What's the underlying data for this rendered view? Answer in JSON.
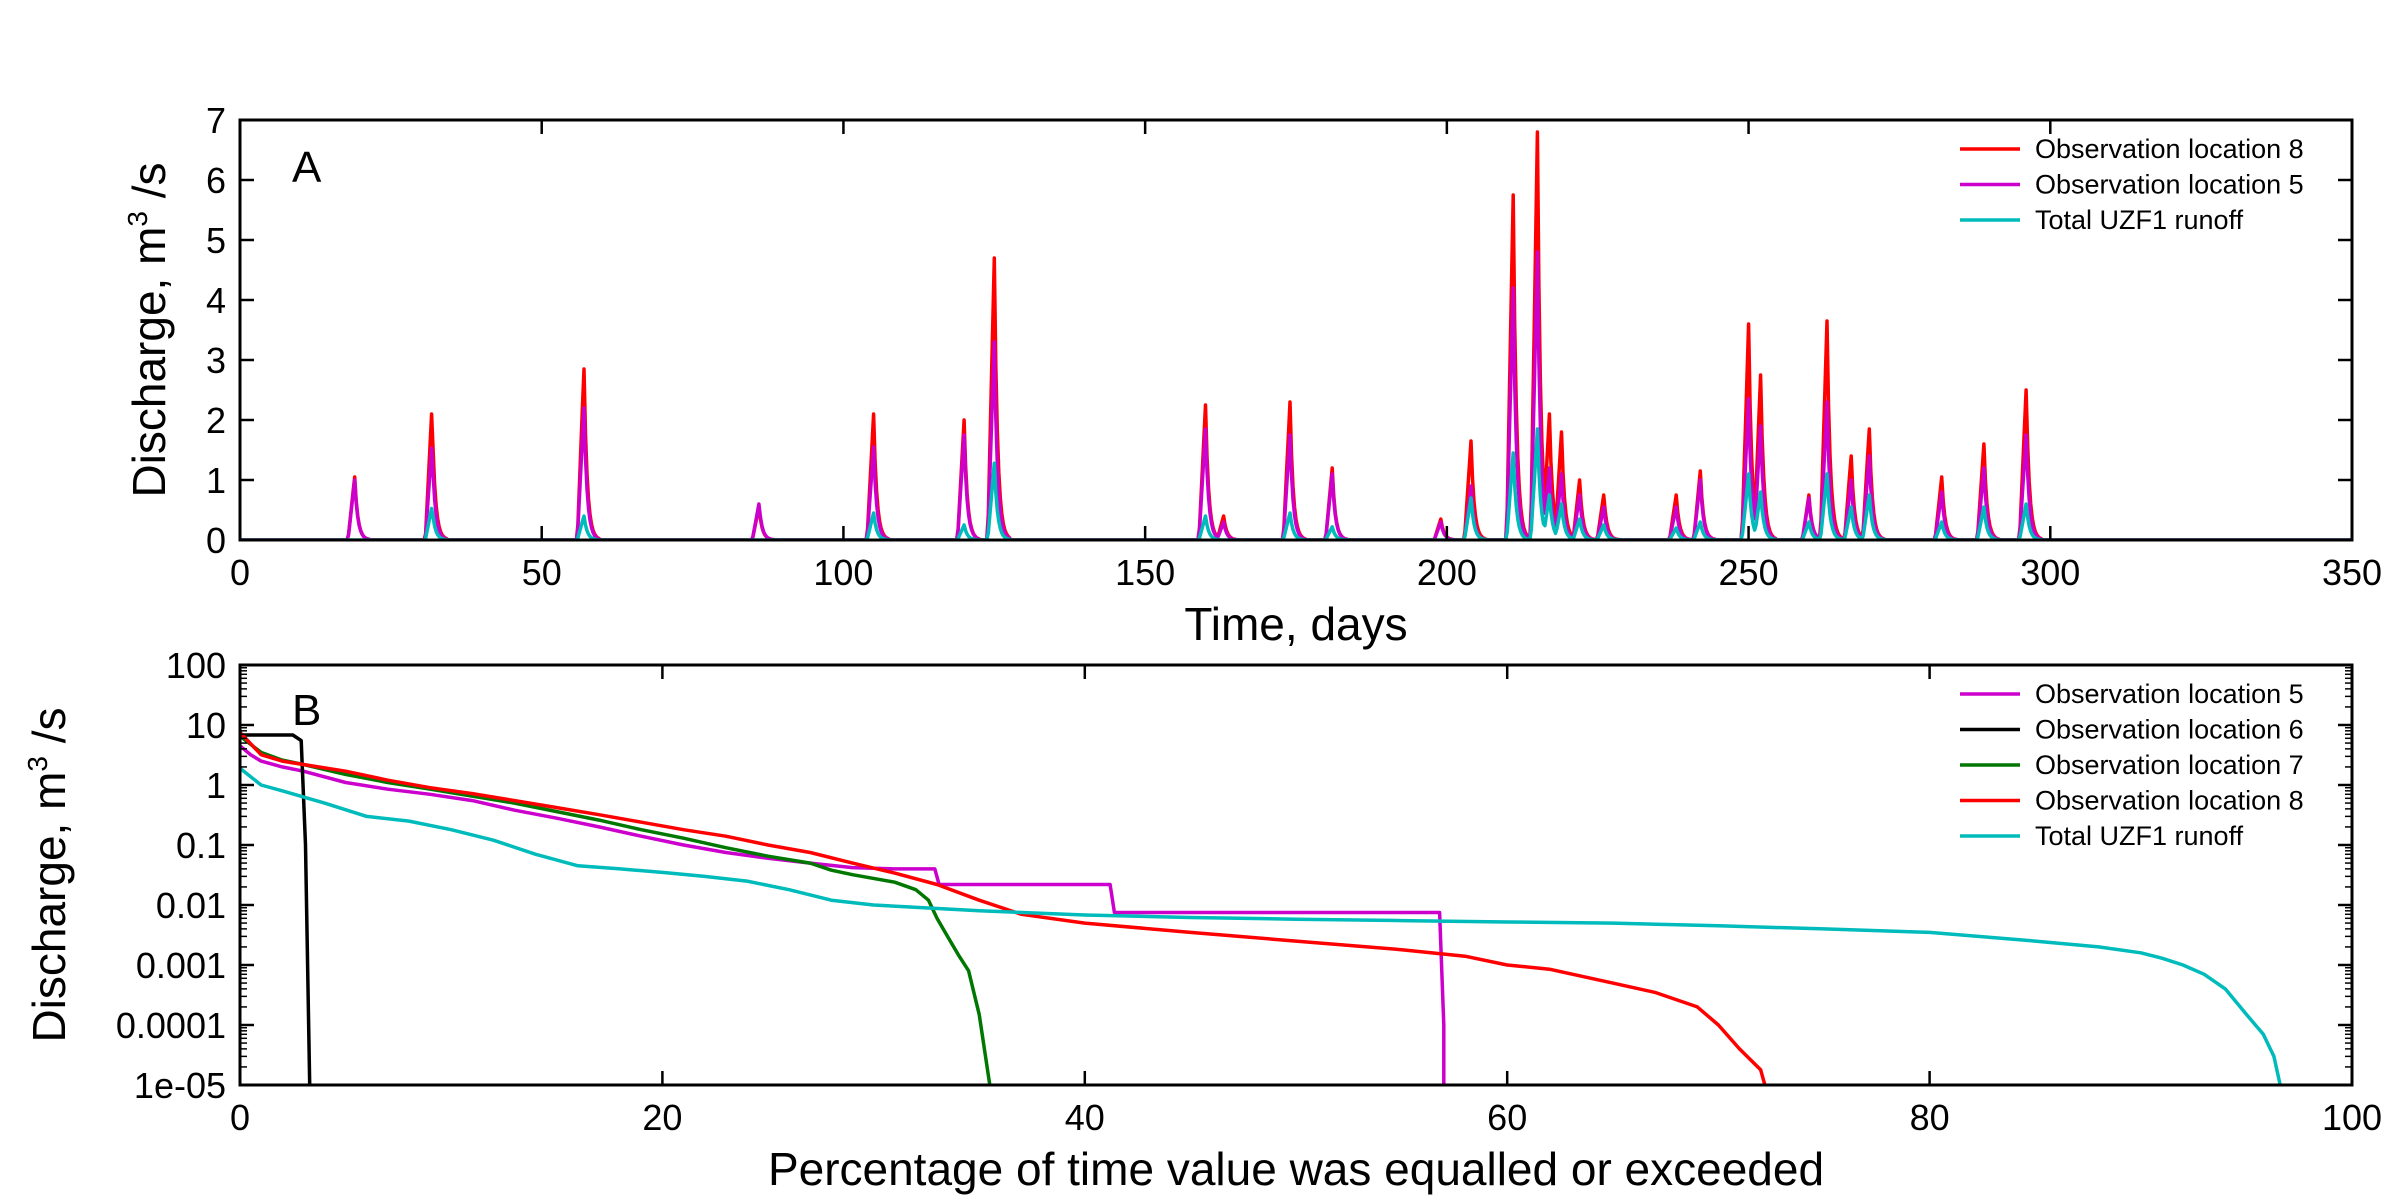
{
  "chart_data": [
    {
      "type": "line",
      "panel_label": "A",
      "xlabel": "Time, days",
      "ylabel": "Discharge, m³ /s",
      "ylabel_parts": {
        "main": "Discharge, m",
        "sup": "3",
        "unit": " /s"
      },
      "xlim": [
        0,
        350
      ],
      "ylim": [
        0,
        7
      ],
      "xticks": [
        0,
        50,
        100,
        150,
        200,
        250,
        300,
        350
      ],
      "xtick_labels": [
        "0",
        "50",
        "100",
        "150",
        "200",
        "250",
        "300",
        "350"
      ],
      "yticks": [
        0,
        1,
        2,
        3,
        4,
        5,
        6,
        7
      ],
      "ytick_labels": [
        "0",
        "1",
        "2",
        "3",
        "4",
        "5",
        "6",
        "7"
      ],
      "grid": false,
      "legend_position": "top-right",
      "series": [
        {
          "name": "Observation location 8",
          "color": "#ff0000",
          "peaks": [
            [
              19,
              1.05
            ],
            [
              31.8,
              2.2
            ],
            [
              57,
              2.85
            ],
            [
              86,
              0.55
            ],
            [
              105,
              2.1
            ],
            [
              120,
              2.0
            ],
            [
              125,
              4.7
            ],
            [
              160,
              2.25
            ],
            [
              163,
              0.4
            ],
            [
              174,
              2.3
            ],
            [
              181,
              1.2
            ],
            [
              199,
              0.35
            ],
            [
              204,
              1.65
            ],
            [
              211,
              5.75
            ],
            [
              215,
              6.8
            ],
            [
              217,
              2.1
            ],
            [
              219,
              1.8
            ],
            [
              222,
              1.0
            ],
            [
              226,
              0.75
            ],
            [
              238,
              0.75
            ],
            [
              242,
              1.15
            ],
            [
              250,
              3.6
            ],
            [
              252,
              2.75
            ],
            [
              260,
              0.75
            ],
            [
              263,
              3.65
            ],
            [
              267,
              1.4
            ],
            [
              270,
              1.85
            ],
            [
              282,
              1.05
            ],
            [
              289,
              1.6
            ],
            [
              296,
              2.5
            ]
          ]
        },
        {
          "name": "Observation location 5",
          "color": "#cc00cc",
          "peaks": [
            [
              19,
              1.0
            ],
            [
              31.8,
              1.6
            ],
            [
              57,
              2.2
            ],
            [
              86,
              0.6
            ],
            [
              105,
              1.55
            ],
            [
              120,
              1.75
            ],
            [
              125,
              3.3
            ],
            [
              160,
              1.85
            ],
            [
              163,
              0.3
            ],
            [
              174,
              1.75
            ],
            [
              181,
              1.1
            ],
            [
              199,
              0.3
            ],
            [
              204,
              0.9
            ],
            [
              211,
              4.2
            ],
            [
              215,
              4.8
            ],
            [
              217,
              1.2
            ],
            [
              219,
              1.1
            ],
            [
              222,
              0.75
            ],
            [
              226,
              0.55
            ],
            [
              238,
              0.55
            ],
            [
              242,
              1.0
            ],
            [
              250,
              2.35
            ],
            [
              252,
              1.9
            ],
            [
              260,
              0.7
            ],
            [
              263,
              2.3
            ],
            [
              267,
              1.0
            ],
            [
              270,
              1.4
            ],
            [
              282,
              0.8
            ],
            [
              289,
              1.2
            ],
            [
              296,
              1.75
            ]
          ]
        },
        {
          "name": "Total UZF1 runoff",
          "color": "#00bbbb",
          "peaks": [
            [
              31.8,
              0.55
            ],
            [
              57,
              0.4
            ],
            [
              105,
              0.45
            ],
            [
              120,
              0.25
            ],
            [
              125,
              1.28
            ],
            [
              160,
              0.4
            ],
            [
              174,
              0.45
            ],
            [
              181,
              0.22
            ],
            [
              204,
              0.7
            ],
            [
              211,
              1.45
            ],
            [
              215,
              1.85
            ],
            [
              217,
              0.75
            ],
            [
              219,
              0.6
            ],
            [
              222,
              0.35
            ],
            [
              226,
              0.25
            ],
            [
              238,
              0.2
            ],
            [
              242,
              0.3
            ],
            [
              250,
              1.1
            ],
            [
              252,
              0.8
            ],
            [
              260,
              0.3
            ],
            [
              263,
              1.1
            ],
            [
              267,
              0.55
            ],
            [
              270,
              0.75
            ],
            [
              282,
              0.3
            ],
            [
              289,
              0.55
            ],
            [
              296,
              0.6
            ]
          ]
        }
      ]
    },
    {
      "type": "line",
      "panel_label": "B",
      "xlabel": "Percentage of time value was equalled or exceeded",
      "ylabel": "Discharge, m³ /s",
      "ylabel_parts": {
        "main": "Discharge, m",
        "sup": "3",
        "unit": " /s"
      },
      "xlim": [
        0,
        100
      ],
      "ylim": [
        1e-05,
        100
      ],
      "yscale": "log",
      "xticks": [
        0,
        20,
        40,
        60,
        80,
        100
      ],
      "xtick_labels": [
        "0",
        "20",
        "40",
        "60",
        "80",
        "100"
      ],
      "yticks": [
        1e-05,
        0.0001,
        0.001,
        0.01,
        0.1,
        1,
        10,
        100
      ],
      "ytick_labels": [
        "1e-05",
        "0.0001",
        "0.001",
        "0.01",
        "0.1",
        "1",
        "10",
        "100"
      ],
      "grid": false,
      "legend_position": "top-right",
      "series": [
        {
          "name": "Observation location 5",
          "color": "#cc00cc",
          "x": [
            0,
            0.5,
            1,
            2,
            3,
            5,
            7,
            9,
            11,
            13,
            15,
            17,
            19,
            21,
            23,
            25,
            27,
            29,
            31,
            32.9,
            33.1,
            41.2,
            41.4,
            56.8,
            57.0,
            57.0
          ],
          "y": [
            4.5,
            3.2,
            2.5,
            2.0,
            1.7,
            1.1,
            0.85,
            0.7,
            0.55,
            0.38,
            0.28,
            0.2,
            0.14,
            0.1,
            0.075,
            0.06,
            0.05,
            0.042,
            0.04,
            0.04,
            0.022,
            0.022,
            0.0075,
            0.0075,
            0.0001,
            1e-05
          ]
        },
        {
          "name": "Observation location 6",
          "color": "#000000",
          "x": [
            0,
            2.5,
            2.9,
            3.1,
            3.3
          ],
          "y": [
            6.8,
            6.8,
            5.5,
            0.1,
            1e-05
          ]
        },
        {
          "name": "Observation location 7",
          "color": "#007700",
          "x": [
            0,
            1,
            2,
            3,
            5,
            7,
            9,
            11,
            13,
            15,
            17,
            19,
            21,
            23,
            25,
            27,
            28,
            29,
            31,
            32,
            32.6,
            33,
            33.5,
            34,
            34.5,
            35,
            35.5
          ],
          "y": [
            6.5,
            3.5,
            2.6,
            2.2,
            1.5,
            1.1,
            0.85,
            0.65,
            0.5,
            0.36,
            0.26,
            0.18,
            0.13,
            0.09,
            0.065,
            0.05,
            0.038,
            0.032,
            0.024,
            0.018,
            0.012,
            0.006,
            0.003,
            0.0015,
            0.0008,
            0.00015,
            1e-05
          ]
        },
        {
          "name": "Observation location 8",
          "color": "#ff0000",
          "x": [
            0,
            1,
            2,
            3,
            5,
            7,
            9,
            11,
            13,
            15,
            17,
            19,
            21,
            23,
            25,
            27,
            29,
            31,
            33,
            35,
            37,
            40,
            45,
            50,
            55,
            58,
            60,
            62,
            65,
            67,
            69,
            70,
            71,
            72,
            72.2
          ],
          "y": [
            7.5,
            3.2,
            2.5,
            2.2,
            1.7,
            1.2,
            0.9,
            0.72,
            0.55,
            0.42,
            0.32,
            0.24,
            0.18,
            0.14,
            0.1,
            0.075,
            0.05,
            0.034,
            0.022,
            0.012,
            0.007,
            0.005,
            0.0035,
            0.0025,
            0.0018,
            0.0014,
            0.001,
            0.00085,
            0.0005,
            0.00035,
            0.0002,
            0.0001,
            4e-05,
            1.8e-05,
            1e-05
          ]
        },
        {
          "name": "Total UZF1 runoff",
          "color": "#00bbbb",
          "x": [
            0,
            1,
            2,
            4,
            6,
            8,
            10,
            12,
            14,
            16,
            18,
            20,
            22,
            24,
            26,
            28,
            30,
            35,
            40,
            45,
            50,
            55,
            60,
            65,
            70,
            75,
            80,
            85,
            88,
            90,
            91,
            92,
            93,
            94,
            95,
            95.8,
            96.3,
            96.6
          ],
          "y": [
            1.9,
            1.0,
            0.8,
            0.5,
            0.3,
            0.25,
            0.18,
            0.12,
            0.07,
            0.045,
            0.04,
            0.035,
            0.03,
            0.025,
            0.018,
            0.012,
            0.01,
            0.008,
            0.0068,
            0.0062,
            0.0058,
            0.0055,
            0.0052,
            0.005,
            0.0045,
            0.004,
            0.0035,
            0.0025,
            0.002,
            0.0016,
            0.0013,
            0.001,
            0.0007,
            0.0004,
            0.00015,
            7e-05,
            3e-05,
            1e-05
          ]
        }
      ]
    }
  ]
}
